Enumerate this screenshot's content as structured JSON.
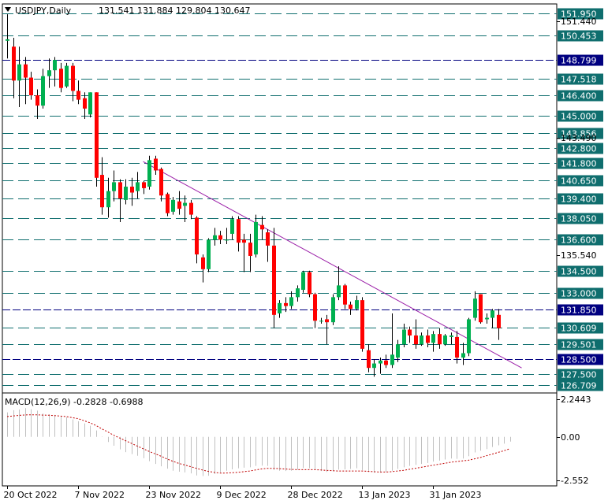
{
  "header": {
    "menu_icon": "triangle-down-icon",
    "symbol": "USDJPY,Daily",
    "ohlc": "131.541 131.884 129.804 130.647"
  },
  "colors": {
    "background": "#ffffff",
    "frame": "#000000",
    "bull": "#00b050",
    "bear": "#ff0000",
    "level_line": "#0f6e6e",
    "navy_line": "#000080",
    "trendline": "#9b1fa8",
    "label_teal": "#0f6e6e",
    "label_navy": "#000080",
    "macd_hist": "#c0c0c0",
    "macd_signal": "#c00000"
  },
  "chart_data": [
    {
      "type": "candlestick",
      "title": "USDJPY,Daily",
      "ylim": [
        126.2,
        152.6
      ],
      "x_tick_labels": [
        {
          "index": 0,
          "label": "20 Oct 2022"
        },
        {
          "index": 12,
          "label": "7 Nov 2022"
        },
        {
          "index": 24,
          "label": "23 Nov 2022"
        },
        {
          "index": 36,
          "label": "9 Dec 2022"
        },
        {
          "index": 48,
          "label": "28 Dec 2022"
        },
        {
          "index": 60,
          "label": "13 Jan 2023"
        },
        {
          "index": 72,
          "label": "31 Jan 2023"
        }
      ],
      "candles": [
        {
          "o": 150.1,
          "h": 151.9,
          "l": 148.9,
          "c": 150.2
        },
        {
          "o": 149.7,
          "h": 150.3,
          "l": 146.2,
          "c": 147.4
        },
        {
          "o": 147.4,
          "h": 149.7,
          "l": 145.6,
          "c": 148.5
        },
        {
          "o": 148.5,
          "h": 149.0,
          "l": 145.8,
          "c": 147.6
        },
        {
          "o": 147.6,
          "h": 148.0,
          "l": 146.1,
          "c": 146.4
        },
        {
          "o": 146.4,
          "h": 146.8,
          "l": 144.8,
          "c": 145.7
        },
        {
          "o": 145.7,
          "h": 148.2,
          "l": 145.5,
          "c": 147.7
        },
        {
          "o": 147.7,
          "h": 148.9,
          "l": 146.9,
          "c": 148.1
        },
        {
          "o": 148.1,
          "h": 149.0,
          "l": 147.0,
          "c": 148.8
        },
        {
          "o": 148.2,
          "h": 148.6,
          "l": 146.6,
          "c": 146.9
        },
        {
          "o": 147.0,
          "h": 148.6,
          "l": 146.9,
          "c": 148.4
        },
        {
          "o": 148.4,
          "h": 148.6,
          "l": 146.0,
          "c": 146.7
        },
        {
          "o": 146.7,
          "h": 147.4,
          "l": 145.8,
          "c": 146.1
        },
        {
          "o": 146.2,
          "h": 146.6,
          "l": 144.8,
          "c": 145.5
        },
        {
          "o": 145.1,
          "h": 146.6,
          "l": 144.9,
          "c": 146.6
        },
        {
          "o": 146.6,
          "h": 146.6,
          "l": 140.2,
          "c": 140.8
        },
        {
          "o": 141.0,
          "h": 142.2,
          "l": 138.3,
          "c": 138.8
        },
        {
          "o": 138.8,
          "h": 140.8,
          "l": 138.1,
          "c": 139.9
        },
        {
          "o": 139.9,
          "h": 141.3,
          "l": 139.2,
          "c": 140.5
        },
        {
          "o": 140.5,
          "h": 140.7,
          "l": 137.8,
          "c": 139.4
        },
        {
          "o": 139.3,
          "h": 140.7,
          "l": 139.0,
          "c": 140.2
        },
        {
          "o": 140.2,
          "h": 140.8,
          "l": 138.9,
          "c": 139.8
        },
        {
          "o": 139.9,
          "h": 141.2,
          "l": 139.4,
          "c": 140.5
        },
        {
          "o": 140.5,
          "h": 140.6,
          "l": 139.7,
          "c": 140.1
        },
        {
          "o": 140.2,
          "h": 142.3,
          "l": 140.0,
          "c": 142.0
        },
        {
          "o": 142.1,
          "h": 142.3,
          "l": 141.0,
          "c": 141.3
        },
        {
          "o": 141.4,
          "h": 141.5,
          "l": 139.2,
          "c": 139.6
        },
        {
          "o": 139.7,
          "h": 139.8,
          "l": 138.2,
          "c": 138.4
        },
        {
          "o": 138.5,
          "h": 139.5,
          "l": 138.3,
          "c": 139.3
        },
        {
          "o": 139.2,
          "h": 139.9,
          "l": 138.3,
          "c": 138.7
        },
        {
          "o": 138.9,
          "h": 139.6,
          "l": 137.8,
          "c": 139.1
        },
        {
          "o": 139.1,
          "h": 139.3,
          "l": 138.0,
          "c": 138.3
        },
        {
          "o": 138.1,
          "h": 138.2,
          "l": 135.0,
          "c": 135.6
        },
        {
          "o": 135.4,
          "h": 135.6,
          "l": 133.7,
          "c": 134.6
        },
        {
          "o": 134.6,
          "h": 136.7,
          "l": 134.4,
          "c": 136.6
        },
        {
          "o": 136.6,
          "h": 137.4,
          "l": 136.2,
          "c": 136.9
        },
        {
          "o": 136.9,
          "h": 137.2,
          "l": 136.3,
          "c": 136.6
        },
        {
          "o": 136.6,
          "h": 137.4,
          "l": 136.3,
          "c": 136.6
        },
        {
          "o": 137.0,
          "h": 138.2,
          "l": 136.6,
          "c": 138.0
        },
        {
          "o": 138.0,
          "h": 138.2,
          "l": 135.8,
          "c": 136.4
        },
        {
          "o": 136.6,
          "h": 137.0,
          "l": 134.4,
          "c": 136.4
        },
        {
          "o": 136.4,
          "h": 137.0,
          "l": 134.4,
          "c": 135.5
        },
        {
          "o": 135.6,
          "h": 138.3,
          "l": 135.4,
          "c": 137.8
        },
        {
          "o": 137.6,
          "h": 138.2,
          "l": 136.6,
          "c": 137.3
        },
        {
          "o": 137.1,
          "h": 137.3,
          "l": 135.1,
          "c": 136.2
        },
        {
          "o": 136.2,
          "h": 137.4,
          "l": 130.6,
          "c": 131.5
        },
        {
          "o": 131.6,
          "h": 132.5,
          "l": 131.3,
          "c": 132.3
        },
        {
          "o": 132.3,
          "h": 132.7,
          "l": 131.7,
          "c": 132.1
        },
        {
          "o": 132.1,
          "h": 133.1,
          "l": 131.9,
          "c": 132.7
        },
        {
          "o": 132.7,
          "h": 133.5,
          "l": 132.4,
          "c": 133.3
        },
        {
          "o": 133.2,
          "h": 134.5,
          "l": 133.0,
          "c": 134.4
        },
        {
          "o": 134.4,
          "h": 134.5,
          "l": 132.7,
          "c": 132.9
        },
        {
          "o": 132.9,
          "h": 133.0,
          "l": 130.6,
          "c": 131.1
        },
        {
          "o": 131.1,
          "h": 131.3,
          "l": 130.9,
          "c": 131.1
        },
        {
          "o": 131.2,
          "h": 131.5,
          "l": 129.5,
          "c": 131.0
        },
        {
          "o": 131.0,
          "h": 132.9,
          "l": 130.8,
          "c": 132.7
        },
        {
          "o": 132.7,
          "h": 134.8,
          "l": 132.5,
          "c": 133.5
        },
        {
          "o": 133.5,
          "h": 133.6,
          "l": 131.9,
          "c": 132.2
        },
        {
          "o": 132.2,
          "h": 132.4,
          "l": 131.5,
          "c": 131.9
        },
        {
          "o": 131.9,
          "h": 132.8,
          "l": 131.8,
          "c": 132.5
        },
        {
          "o": 132.5,
          "h": 132.7,
          "l": 129.0,
          "c": 129.2
        },
        {
          "o": 129.1,
          "h": 129.5,
          "l": 127.6,
          "c": 127.9
        },
        {
          "o": 127.9,
          "h": 128.5,
          "l": 127.3,
          "c": 128.2
        },
        {
          "o": 128.2,
          "h": 128.6,
          "l": 127.5,
          "c": 128.4
        },
        {
          "o": 128.4,
          "h": 128.8,
          "l": 127.9,
          "c": 128.1
        },
        {
          "o": 128.1,
          "h": 131.6,
          "l": 127.9,
          "c": 128.8
        },
        {
          "o": 128.6,
          "h": 129.8,
          "l": 128.3,
          "c": 129.5
        },
        {
          "o": 129.5,
          "h": 130.9,
          "l": 129.3,
          "c": 130.5
        },
        {
          "o": 130.5,
          "h": 130.7,
          "l": 129.6,
          "c": 130.1
        },
        {
          "o": 130.1,
          "h": 131.2,
          "l": 129.2,
          "c": 129.5
        },
        {
          "o": 129.5,
          "h": 130.3,
          "l": 129.4,
          "c": 130.1
        },
        {
          "o": 130.1,
          "h": 130.5,
          "l": 129.3,
          "c": 129.6
        },
        {
          "o": 129.6,
          "h": 130.4,
          "l": 129.0,
          "c": 130.2
        },
        {
          "o": 130.2,
          "h": 130.6,
          "l": 129.2,
          "c": 129.5
        },
        {
          "o": 129.5,
          "h": 130.2,
          "l": 129.4,
          "c": 130.1
        },
        {
          "o": 130.0,
          "h": 130.3,
          "l": 129.5,
          "c": 130.1
        },
        {
          "o": 130.0,
          "h": 130.4,
          "l": 128.2,
          "c": 128.6
        },
        {
          "o": 128.6,
          "h": 129.6,
          "l": 128.1,
          "c": 128.9
        },
        {
          "o": 128.9,
          "h": 131.3,
          "l": 128.7,
          "c": 131.2
        },
        {
          "o": 131.3,
          "h": 133.1,
          "l": 131.1,
          "c": 132.6
        },
        {
          "o": 132.9,
          "h": 132.9,
          "l": 130.9,
          "c": 131.0
        },
        {
          "o": 131.2,
          "h": 131.6,
          "l": 130.9,
          "c": 131.3
        },
        {
          "o": 131.3,
          "h": 131.9,
          "l": 130.6,
          "c": 131.8
        },
        {
          "o": 131.5,
          "h": 131.9,
          "l": 129.8,
          "c": 130.6
        }
      ],
      "horizontal_levels": [
        {
          "value": 151.95,
          "label": "151.950",
          "style": "teal"
        },
        {
          "value": 150.453,
          "label": "150.453",
          "style": "teal"
        },
        {
          "value": 148.799,
          "label": "148.799",
          "style": "navy"
        },
        {
          "value": 147.518,
          "label": "147.518",
          "style": "teal"
        },
        {
          "value": 146.4,
          "label": "146.400",
          "style": "teal"
        },
        {
          "value": 145.0,
          "label": "145.000",
          "style": "teal"
        },
        {
          "value": 143.856,
          "label": "143.856",
          "style": "teal"
        },
        {
          "value": 142.8,
          "label": "142.800",
          "style": "teal"
        },
        {
          "value": 141.8,
          "label": "141.800",
          "style": "teal"
        },
        {
          "value": 140.65,
          "label": "140.650",
          "style": "teal"
        },
        {
          "value": 139.4,
          "label": "139.400",
          "style": "teal"
        },
        {
          "value": 138.05,
          "label": "138.050",
          "style": "teal"
        },
        {
          "value": 136.6,
          "label": "136.600",
          "style": "teal"
        },
        {
          "value": 134.5,
          "label": "134.500",
          "style": "teal"
        },
        {
          "value": 133.0,
          "label": "133.000",
          "style": "teal"
        },
        {
          "value": 131.85,
          "label": "131.850",
          "style": "navy"
        },
        {
          "value": 130.609,
          "label": "130.609",
          "style": "teal"
        },
        {
          "value": 129.501,
          "label": "129.501",
          "style": "teal"
        },
        {
          "value": 128.5,
          "label": "128.500",
          "style": "navy"
        },
        {
          "value": 127.5,
          "label": "127.500",
          "style": "teal"
        },
        {
          "value": 126.709,
          "label": "126.709",
          "style": "teal"
        }
      ],
      "axis_price_labels": [
        {
          "value": 151.44,
          "label": "151.440"
        },
        {
          "value": 143.49,
          "label": "143.490"
        },
        {
          "value": 135.54,
          "label": "135.540"
        }
      ],
      "trendline": {
        "from": {
          "index": 23,
          "price": 141.9
        },
        "to": {
          "index": 87,
          "price": 127.9
        }
      }
    },
    {
      "type": "macd",
      "title": "MACD(12,26,9) -0.2828 -0.6988",
      "ylim": [
        -2.9,
        2.6
      ],
      "y_tick_labels": [
        {
          "value": 2.2443,
          "label": "2.2443"
        },
        {
          "value": 0.0,
          "label": "0.00"
        },
        {
          "value": -2.552,
          "label": "-2.552"
        }
      ],
      "histogram": [
        1.45,
        1.58,
        1.62,
        1.7,
        1.64,
        1.56,
        1.38,
        1.34,
        1.3,
        1.22,
        1.16,
        1.04,
        0.92,
        0.8,
        0.66,
        0.38,
        0.02,
        -0.3,
        -0.52,
        -0.74,
        -0.9,
        -1.02,
        -1.12,
        -1.26,
        -1.44,
        -1.6,
        -1.74,
        -1.88,
        -2.0,
        -2.06,
        -2.1,
        -2.16,
        -2.28,
        -2.32,
        -2.3,
        -2.2,
        -2.1,
        -2.0,
        -1.92,
        -1.86,
        -1.82,
        -1.8,
        -1.72,
        -1.7,
        -1.72,
        -1.96,
        -2.0,
        -2.02,
        -2.0,
        -1.94,
        -1.84,
        -1.86,
        -1.96,
        -2.02,
        -2.08,
        -2.04,
        -1.94,
        -1.92,
        -1.9,
        -1.86,
        -1.96,
        -2.08,
        -2.12,
        -2.12,
        -2.08,
        -2.0,
        -1.9,
        -1.8,
        -1.72,
        -1.66,
        -1.6,
        -1.54,
        -1.46,
        -1.4,
        -1.34,
        -1.28,
        -1.3,
        -1.28,
        -1.14,
        -0.92,
        -0.82,
        -0.72,
        -0.6,
        -0.5,
        -0.4,
        -0.28
      ],
      "signal": [
        1.2,
        1.24,
        1.27,
        1.3,
        1.31,
        1.31,
        1.29,
        1.28,
        1.26,
        1.23,
        1.2,
        1.14,
        1.08,
        0.96,
        0.84,
        0.68,
        0.48,
        0.3,
        0.1,
        -0.06,
        -0.22,
        -0.38,
        -0.54,
        -0.7,
        -0.86,
        -1.0,
        -1.14,
        -1.3,
        -1.44,
        -1.56,
        -1.66,
        -1.76,
        -1.86,
        -1.96,
        -2.04,
        -2.1,
        -2.14,
        -2.14,
        -2.12,
        -2.1,
        -2.06,
        -2.02,
        -1.96,
        -1.9,
        -1.86,
        -1.86,
        -1.88,
        -1.9,
        -1.92,
        -1.94,
        -1.94,
        -1.94,
        -1.94,
        -1.96,
        -1.98,
        -2.0,
        -2.02,
        -2.02,
        -2.02,
        -2.02,
        -2.02,
        -2.04,
        -2.06,
        -2.08,
        -2.08,
        -2.06,
        -2.02,
        -1.98,
        -1.92,
        -1.86,
        -1.8,
        -1.74,
        -1.68,
        -1.62,
        -1.56,
        -1.5,
        -1.46,
        -1.42,
        -1.38,
        -1.3,
        -1.22,
        -1.12,
        -1.02,
        -0.92,
        -0.82,
        -0.7
      ]
    }
  ]
}
